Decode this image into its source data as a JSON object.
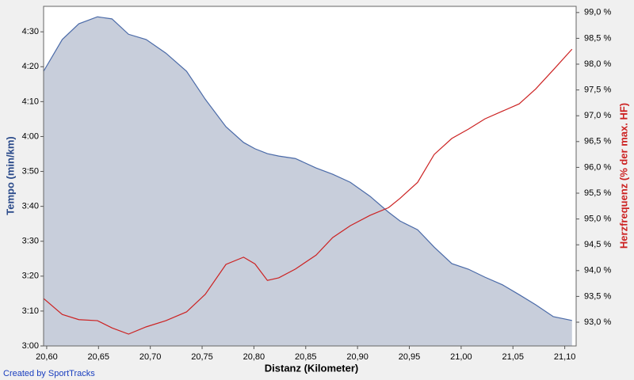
{
  "chart_data": {
    "type": "area",
    "xlabel": "Distanz (Kilometer)",
    "ylabel": "Tempo (min/km)",
    "y2label": "Herzfrequenz (% der max. HF)",
    "footer": "Created by SportTracks",
    "x": [
      20.597,
      20.615,
      20.631,
      20.649,
      20.663,
      20.679,
      20.696,
      20.715,
      20.735,
      20.753,
      20.773,
      20.79,
      20.801,
      20.813,
      20.824,
      20.84,
      20.86,
      20.876,
      20.893,
      20.912,
      20.93,
      20.941,
      20.958,
      20.974,
      20.991,
      21.007,
      21.023,
      21.04,
      21.056,
      21.072,
      21.089,
      21.107
    ],
    "series": [
      {
        "name": "Tempo",
        "type": "area",
        "axis": "y",
        "color": "#4a6aa8",
        "fill": "#c8cedb",
        "values": [
          258.7,
          267.8,
          272.3,
          274.3,
          273.7,
          269.3,
          267.8,
          263.9,
          258.7,
          250.7,
          242.8,
          238.3,
          236.5,
          235.1,
          234.4,
          233.7,
          231.0,
          229.2,
          226.9,
          222.9,
          218.3,
          215.8,
          213.3,
          208.3,
          203.6,
          202.0,
          199.7,
          197.5,
          194.7,
          191.8,
          188.4,
          187.3
        ]
      },
      {
        "name": "Herzfrequenz",
        "type": "line",
        "axis": "y2",
        "color": "#cc2222",
        "values": [
          93.46,
          93.15,
          93.05,
          93.03,
          92.89,
          92.77,
          92.91,
          93.03,
          93.2,
          93.54,
          94.12,
          94.26,
          94.13,
          93.81,
          93.86,
          94.03,
          94.3,
          94.64,
          94.87,
          95.07,
          95.22,
          95.4,
          95.71,
          96.25,
          96.56,
          96.74,
          96.94,
          97.09,
          97.23,
          97.52,
          97.89,
          98.29
        ]
      }
    ],
    "xlim": [
      20.597,
      21.111
    ],
    "ylim": [
      180,
      277.3
    ],
    "y2lim": [
      92.54,
      99.12
    ],
    "xticks": [
      {
        "value": 20.6,
        "label": "20,60"
      },
      {
        "value": 20.65,
        "label": "20,65"
      },
      {
        "value": 20.7,
        "label": "20,70"
      },
      {
        "value": 20.75,
        "label": "20,75"
      },
      {
        "value": 20.8,
        "label": "20,80"
      },
      {
        "value": 20.85,
        "label": "20,85"
      },
      {
        "value": 20.9,
        "label": "20,90"
      },
      {
        "value": 20.95,
        "label": "20,95"
      },
      {
        "value": 21.0,
        "label": "21,00"
      },
      {
        "value": 21.05,
        "label": "21,05"
      },
      {
        "value": 21.1,
        "label": "21,10"
      }
    ],
    "yticks": [
      {
        "value": 180,
        "label": "3:00"
      },
      {
        "value": 190,
        "label": "3:10"
      },
      {
        "value": 200,
        "label": "3:20"
      },
      {
        "value": 210,
        "label": "3:30"
      },
      {
        "value": 220,
        "label": "3:40"
      },
      {
        "value": 230,
        "label": "3:50"
      },
      {
        "value": 240,
        "label": "4:00"
      },
      {
        "value": 250,
        "label": "4:10"
      },
      {
        "value": 260,
        "label": "4:20"
      },
      {
        "value": 270,
        "label": "4:30"
      }
    ],
    "y2ticks": [
      {
        "value": 93.0,
        "label": "93,0 %"
      },
      {
        "value": 93.5,
        "label": "93,5 %"
      },
      {
        "value": 94.0,
        "label": "94,0 %"
      },
      {
        "value": 94.5,
        "label": "94,5 %"
      },
      {
        "value": 95.0,
        "label": "95,0 %"
      },
      {
        "value": 95.5,
        "label": "95,5 %"
      },
      {
        "value": 96.0,
        "label": "96,0 %"
      },
      {
        "value": 96.5,
        "label": "96,5 %"
      },
      {
        "value": 97.0,
        "label": "97,0 %"
      },
      {
        "value": 97.5,
        "label": "97,5 %"
      },
      {
        "value": 98.0,
        "label": "98,0 %"
      },
      {
        "value": 98.5,
        "label": "98,5 %"
      },
      {
        "value": 99.0,
        "label": "99,0 %"
      }
    ]
  }
}
